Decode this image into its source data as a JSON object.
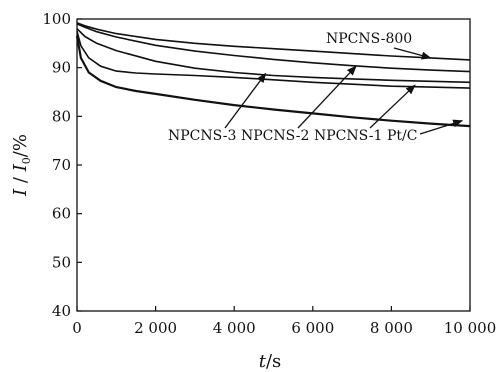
{
  "chart_data": {
    "type": "line",
    "xlabel": "t/s",
    "ylabel": "I / I0/%",
    "xlim": [
      0,
      10000
    ],
    "ylim": [
      40,
      100
    ],
    "x_ticks": [
      0,
      2000,
      4000,
      6000,
      8000,
      10000
    ],
    "x_tick_labels": [
      "0",
      "2 000",
      "4 000",
      "6 000",
      "8 000",
      "10 000"
    ],
    "y_ticks": [
      40,
      50,
      60,
      70,
      80,
      90,
      100
    ],
    "y_tick_labels": [
      "40",
      "50",
      "60",
      "70",
      "80",
      "90",
      "100"
    ],
    "grid": false,
    "legend": "none",
    "series": [
      {
        "name": "NPCNS-800",
        "x": [
          0,
          200,
          500,
          1000,
          2000,
          3000,
          4000,
          5000,
          6000,
          7000,
          8000,
          9000,
          10000
        ],
        "y": [
          99.2,
          98.6,
          97.9,
          97.0,
          95.8,
          95.0,
          94.4,
          93.9,
          93.4,
          92.9,
          92.4,
          92.0,
          91.6
        ]
      },
      {
        "name": "NPCNS-2",
        "x": [
          0,
          200,
          500,
          1000,
          2000,
          3000,
          4000,
          5000,
          6000,
          7000,
          8000,
          9000,
          10000
        ],
        "y": [
          99.0,
          98.3,
          97.4,
          96.3,
          94.6,
          93.4,
          92.5,
          91.7,
          91.0,
          90.4,
          89.9,
          89.5,
          89.2
        ]
      },
      {
        "name": "NPCNS-3",
        "x": [
          0,
          200,
          500,
          1000,
          2000,
          3000,
          4000,
          5000,
          6000,
          7000,
          8000,
          9000,
          10000
        ],
        "y": [
          98.0,
          96.4,
          95.0,
          93.5,
          91.3,
          89.9,
          89.0,
          88.4,
          88.0,
          87.7,
          87.4,
          87.2,
          87.0
        ]
      },
      {
        "name": "NPCNS-1",
        "x": [
          0,
          100,
          300,
          600,
          1000,
          1500,
          2000,
          3000,
          4000,
          5000,
          6000,
          7000,
          8000,
          9000,
          10000
        ],
        "y": [
          97.5,
          94.5,
          92.0,
          90.3,
          89.3,
          88.9,
          88.7,
          88.4,
          88.0,
          87.5,
          87.0,
          86.6,
          86.2,
          86.0,
          85.8
        ]
      },
      {
        "name": "Pt/C",
        "x": [
          0,
          100,
          300,
          600,
          1000,
          1500,
          2000,
          3000,
          4000,
          5000,
          6000,
          7000,
          8000,
          9000,
          10000
        ],
        "y": [
          96.5,
          92.0,
          89.0,
          87.3,
          86.0,
          85.2,
          84.6,
          83.4,
          82.3,
          81.4,
          80.6,
          79.8,
          79.1,
          78.5,
          78.0
        ]
      }
    ],
    "annotations": [
      {
        "label": "NPCNS-800",
        "target": "NPCNS-800",
        "arrow_to": [
          9000,
          92.0
        ]
      },
      {
        "label": "NPCNS-3",
        "target": "NPCNS-3",
        "arrow_to": [
          4800,
          88.8
        ]
      },
      {
        "label": "NPCNS-2",
        "target": "NPCNS-2",
        "arrow_to": [
          7100,
          90.3
        ]
      },
      {
        "label": "NPCNS-1",
        "target": "NPCNS-1",
        "arrow_to": [
          8600,
          86.4
        ]
      },
      {
        "label": "Pt/C",
        "target": "Pt/C",
        "arrow_to": [
          9800,
          79.1
        ]
      }
    ]
  }
}
